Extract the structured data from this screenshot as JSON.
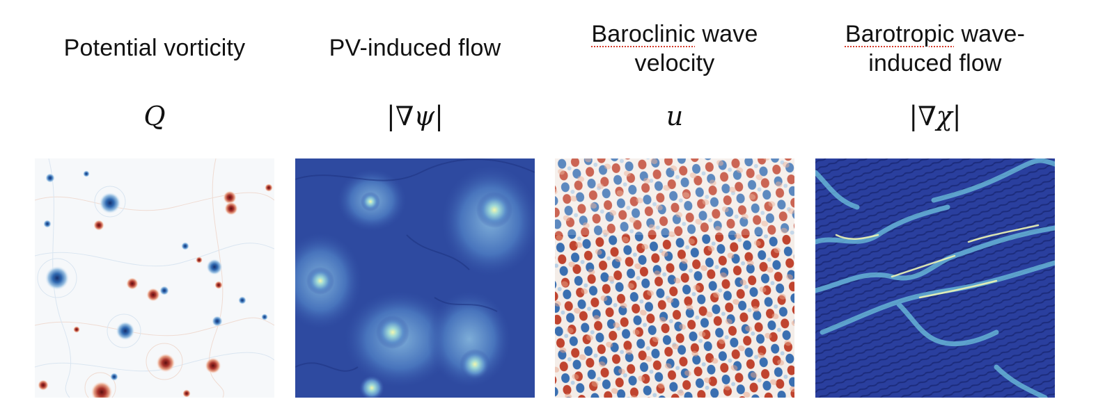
{
  "panels": [
    {
      "title_line1": "Potential vorticity",
      "title_line1_spell": "",
      "title_line1_rest": "",
      "title_line2": "",
      "symbol": "Q",
      "map": "diverging-rdbu-sparse"
    },
    {
      "title_line1": "PV-induced flow",
      "title_line1_spell": "",
      "title_line1_rest": "",
      "title_line2": "",
      "symbol": "|∇ψ|",
      "map": "sequential-blue-yellow"
    },
    {
      "title_line1": "",
      "title_line1_spell": "Baroclinic",
      "title_line1_rest": " wave",
      "title_line2": "velocity",
      "symbol": "u",
      "map": "diverging-rdbu-dense"
    },
    {
      "title_line1": "",
      "title_line1_spell": "Barotropic",
      "title_line1_rest": " wave-",
      "title_line2": "induced flow",
      "symbol": "|∇χ|",
      "map": "sequential-blue-filaments"
    }
  ],
  "colors": {
    "red_dark": "#7f1c1c",
    "red": "#c9552d",
    "blue_dark": "#1f3b8c",
    "blue": "#3b74b8",
    "navy": "#2a3d9a",
    "yellow": "#f3f6a8",
    "cyan": "#7fd3e0"
  }
}
